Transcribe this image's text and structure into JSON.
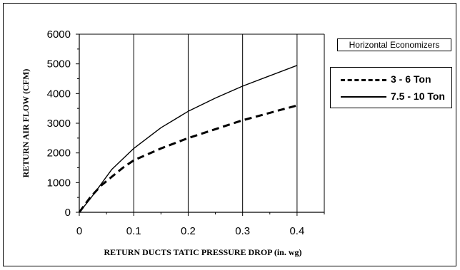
{
  "chart_data": {
    "type": "line",
    "title": "Horizontal Economizers",
    "xlabel": "RETURN DUCTS TATIC PRESSURE DROP (in. wg)",
    "ylabel": "RETURN AIR FLOW (CFM)",
    "xlim": [
      0,
      0.45
    ],
    "ylim": [
      0,
      6000
    ],
    "x_ticks": [
      "0",
      "0.1",
      "0.2",
      "0.3",
      "0.4"
    ],
    "y_ticks": [
      "0",
      "1000",
      "2000",
      "3000",
      "4000",
      "5000",
      "6000"
    ],
    "grid": "vertical",
    "legend_position": "right",
    "series": [
      {
        "name": "3 - 6 Ton",
        "style": "dashed",
        "x": [
          0,
          0.02,
          0.04,
          0.06,
          0.08,
          0.1,
          0.15,
          0.2,
          0.25,
          0.3,
          0.35,
          0.4
        ],
        "y": [
          0,
          500,
          900,
          1200,
          1500,
          1750,
          2150,
          2500,
          2800,
          3100,
          3350,
          3600
        ]
      },
      {
        "name": "7.5 - 10 Ton",
        "style": "solid",
        "x": [
          0,
          0.02,
          0.04,
          0.06,
          0.08,
          0.1,
          0.15,
          0.2,
          0.25,
          0.3,
          0.35,
          0.4
        ],
        "y": [
          0,
          450,
          950,
          1450,
          1800,
          2150,
          2850,
          3400,
          3850,
          4250,
          4600,
          4950
        ]
      }
    ]
  }
}
